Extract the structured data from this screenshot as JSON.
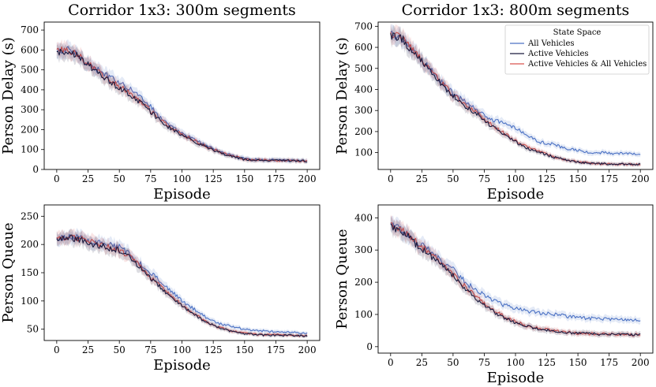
{
  "legend": {
    "title": "State Space",
    "entries": [
      "All Vehicles",
      "Active Vehicles",
      "Active Vehicles & All Vehicles"
    ]
  },
  "colors": {
    "All Vehicles": "#4c72c4",
    "Active Vehicles": "#1a1a3e",
    "Active Vehicles & All Vehicles": "#d9534f"
  },
  "chart_data": [
    {
      "type": "line",
      "title": "Corridor 1x3: 300m segments",
      "xlabel": "Episode",
      "ylabel": "Person Delay (s)",
      "xlim": [
        -10,
        210
      ],
      "ylim": [
        0,
        740
      ],
      "xticks": [
        0,
        25,
        50,
        75,
        100,
        125,
        150,
        175,
        200
      ],
      "yticks": [
        0,
        100,
        200,
        300,
        400,
        500,
        600,
        700
      ],
      "x": [
        0,
        10,
        20,
        30,
        40,
        50,
        60,
        70,
        80,
        90,
        100,
        110,
        120,
        130,
        140,
        150,
        160,
        170,
        180,
        190,
        200
      ],
      "series": [
        {
          "name": "All Vehicles",
          "values": [
            590,
            600,
            560,
            510,
            470,
            440,
            400,
            350,
            280,
            220,
            180,
            150,
            120,
            90,
            70,
            55,
            50,
            48,
            47,
            46,
            45
          ]
        },
        {
          "name": "Active Vehicles",
          "values": [
            585,
            595,
            555,
            500,
            450,
            410,
            370,
            320,
            260,
            210,
            170,
            140,
            110,
            85,
            65,
            50,
            47,
            45,
            44,
            44,
            43
          ]
        },
        {
          "name": "Active Vehicles & All Vehicles",
          "values": [
            595,
            600,
            560,
            505,
            455,
            415,
            375,
            325,
            265,
            215,
            175,
            145,
            115,
            88,
            68,
            52,
            48,
            46,
            45,
            44,
            43
          ]
        }
      ]
    },
    {
      "type": "line",
      "title": "Corridor 1x3: 800m segments",
      "xlabel": "Episode",
      "ylabel": "Person Delay (s)",
      "xlim": [
        -10,
        210
      ],
      "ylim": [
        20,
        720
      ],
      "xticks": [
        0,
        25,
        50,
        75,
        100,
        125,
        150,
        175,
        200
      ],
      "yticks": [
        100,
        200,
        300,
        400,
        500,
        600,
        700
      ],
      "legend_position": "top-right",
      "x": [
        0,
        10,
        20,
        30,
        40,
        50,
        60,
        70,
        80,
        90,
        100,
        110,
        120,
        130,
        140,
        150,
        160,
        170,
        180,
        190,
        200
      ],
      "series": [
        {
          "name": "All Vehicles",
          "values": [
            665,
            640,
            570,
            510,
            440,
            380,
            340,
            300,
            260,
            240,
            220,
            180,
            150,
            140,
            120,
            110,
            100,
            100,
            95,
            95,
            95
          ]
        },
        {
          "name": "Active Vehicles",
          "values": [
            660,
            635,
            565,
            500,
            430,
            370,
            320,
            280,
            230,
            190,
            150,
            120,
            100,
            80,
            65,
            55,
            50,
            47,
            45,
            45,
            44
          ]
        },
        {
          "name": "Active Vehicles & All Vehicles",
          "values": [
            665,
            640,
            570,
            505,
            435,
            375,
            325,
            285,
            235,
            195,
            155,
            125,
            102,
            82,
            66,
            56,
            50,
            47,
            45,
            45,
            44
          ]
        }
      ]
    },
    {
      "type": "line",
      "title": "",
      "xlabel": "Episode",
      "ylabel": "Person Queue",
      "xlim": [
        -10,
        210
      ],
      "ylim": [
        30,
        270
      ],
      "xticks": [
        0,
        25,
        50,
        75,
        100,
        125,
        150,
        175,
        200
      ],
      "yticks": [
        50,
        100,
        150,
        200,
        250
      ],
      "x": [
        0,
        10,
        20,
        30,
        40,
        50,
        60,
        70,
        80,
        90,
        100,
        110,
        120,
        130,
        140,
        150,
        160,
        170,
        180,
        190,
        200
      ],
      "series": [
        {
          "name": "All Vehicles",
          "values": [
            210,
            215,
            210,
            205,
            200,
            195,
            180,
            160,
            140,
            120,
            100,
            85,
            70,
            60,
            55,
            50,
            48,
            46,
            45,
            44,
            43
          ]
        },
        {
          "name": "Active Vehicles",
          "values": [
            208,
            212,
            208,
            200,
            195,
            190,
            175,
            150,
            130,
            110,
            92,
            75,
            62,
            52,
            46,
            42,
            40,
            39,
            39,
            39,
            38
          ]
        },
        {
          "name": "Active Vehicles & All Vehicles",
          "values": [
            210,
            214,
            210,
            202,
            196,
            190,
            176,
            152,
            132,
            112,
            93,
            76,
            63,
            53,
            47,
            43,
            41,
            40,
            40,
            39,
            39
          ]
        }
      ]
    },
    {
      "type": "line",
      "title": "",
      "xlabel": "Episode",
      "ylabel": "Person Queue",
      "xlim": [
        -10,
        210
      ],
      "ylim": [
        -20,
        440
      ],
      "xticks": [
        0,
        25,
        50,
        75,
        100,
        125,
        150,
        175,
        200
      ],
      "yticks": [
        0,
        100,
        200,
        300,
        400
      ],
      "x": [
        0,
        10,
        20,
        30,
        40,
        50,
        60,
        70,
        80,
        90,
        100,
        110,
        120,
        130,
        140,
        150,
        160,
        170,
        180,
        190,
        200
      ],
      "series": [
        {
          "name": "All Vehicles",
          "values": [
            380,
            360,
            330,
            300,
            270,
            240,
            200,
            170,
            150,
            130,
            120,
            110,
            105,
            100,
            95,
            90,
            88,
            86,
            85,
            84,
            83
          ]
        },
        {
          "name": "Active Vehicles",
          "values": [
            375,
            355,
            320,
            290,
            255,
            220,
            180,
            145,
            115,
            92,
            75,
            62,
            55,
            48,
            44,
            41,
            40,
            39,
            38,
            38,
            37
          ]
        },
        {
          "name": "Active Vehicles & All Vehicles",
          "values": [
            378,
            358,
            325,
            295,
            260,
            225,
            185,
            150,
            120,
            95,
            78,
            64,
            56,
            49,
            45,
            42,
            40,
            39,
            38,
            38,
            37
          ]
        }
      ]
    }
  ]
}
